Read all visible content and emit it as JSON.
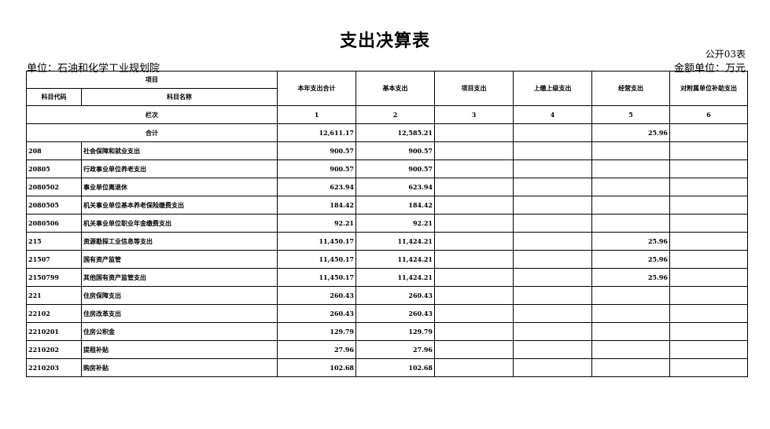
{
  "title": "支出决算表",
  "form_no": "公开03表",
  "unit": "单位：石油和化学工业规划院",
  "amount_unit": "金额单位：万元",
  "headers": {
    "item": "项目",
    "code": "科目代码",
    "name": "科目名称",
    "cols": [
      "本年支出合计",
      "基本支出",
      "项目支出",
      "上缴上级支出",
      "经营支出",
      "对附属单位补助支出"
    ],
    "col_index_label": "栏次",
    "col_index": [
      "1",
      "2",
      "3",
      "4",
      "5",
      "6"
    ]
  },
  "total": {
    "label": "合计",
    "values": [
      "12,611.17",
      "12,585.21",
      "",
      "",
      "25.96",
      ""
    ]
  },
  "rows": [
    {
      "code": "208",
      "name": "社会保障和就业支出",
      "values": [
        "900.57",
        "900.57",
        "",
        "",
        "",
        ""
      ]
    },
    {
      "code": "20805",
      "name": "行政事业单位养老支出",
      "values": [
        "900.57",
        "900.57",
        "",
        "",
        "",
        ""
      ]
    },
    {
      "code": "2080502",
      "name": "事业单位离退休",
      "values": [
        "623.94",
        "623.94",
        "",
        "",
        "",
        ""
      ]
    },
    {
      "code": "2080505",
      "name": "机关事业单位基本养老保险缴费支出",
      "values": [
        "184.42",
        "184.42",
        "",
        "",
        "",
        ""
      ]
    },
    {
      "code": "2080506",
      "name": "机关事业单位职业年金缴费支出",
      "values": [
        "92.21",
        "92.21",
        "",
        "",
        "",
        ""
      ]
    },
    {
      "code": "215",
      "name": "资源勘探工业信息等支出",
      "values": [
        "11,450.17",
        "11,424.21",
        "",
        "",
        "25.96",
        ""
      ]
    },
    {
      "code": "21507",
      "name": "国有资产监管",
      "values": [
        "11,450.17",
        "11,424.21",
        "",
        "",
        "25.96",
        ""
      ]
    },
    {
      "code": "2150799",
      "name": "其他国有资产监管支出",
      "values": [
        "11,450.17",
        "11,424.21",
        "",
        "",
        "25.96",
        ""
      ]
    },
    {
      "code": "221",
      "name": "住房保障支出",
      "values": [
        "260.43",
        "260.43",
        "",
        "",
        "",
        ""
      ]
    },
    {
      "code": "22102",
      "name": "住房改革支出",
      "values": [
        "260.43",
        "260.43",
        "",
        "",
        "",
        ""
      ]
    },
    {
      "code": "2210201",
      "name": "住房公积金",
      "values": [
        "129.79",
        "129.79",
        "",
        "",
        "",
        ""
      ]
    },
    {
      "code": "2210202",
      "name": "提租补贴",
      "values": [
        "27.96",
        "27.96",
        "",
        "",
        "",
        ""
      ]
    },
    {
      "code": "2210203",
      "name": "购房补贴",
      "values": [
        "102.68",
        "102.68",
        "",
        "",
        "",
        ""
      ]
    }
  ]
}
